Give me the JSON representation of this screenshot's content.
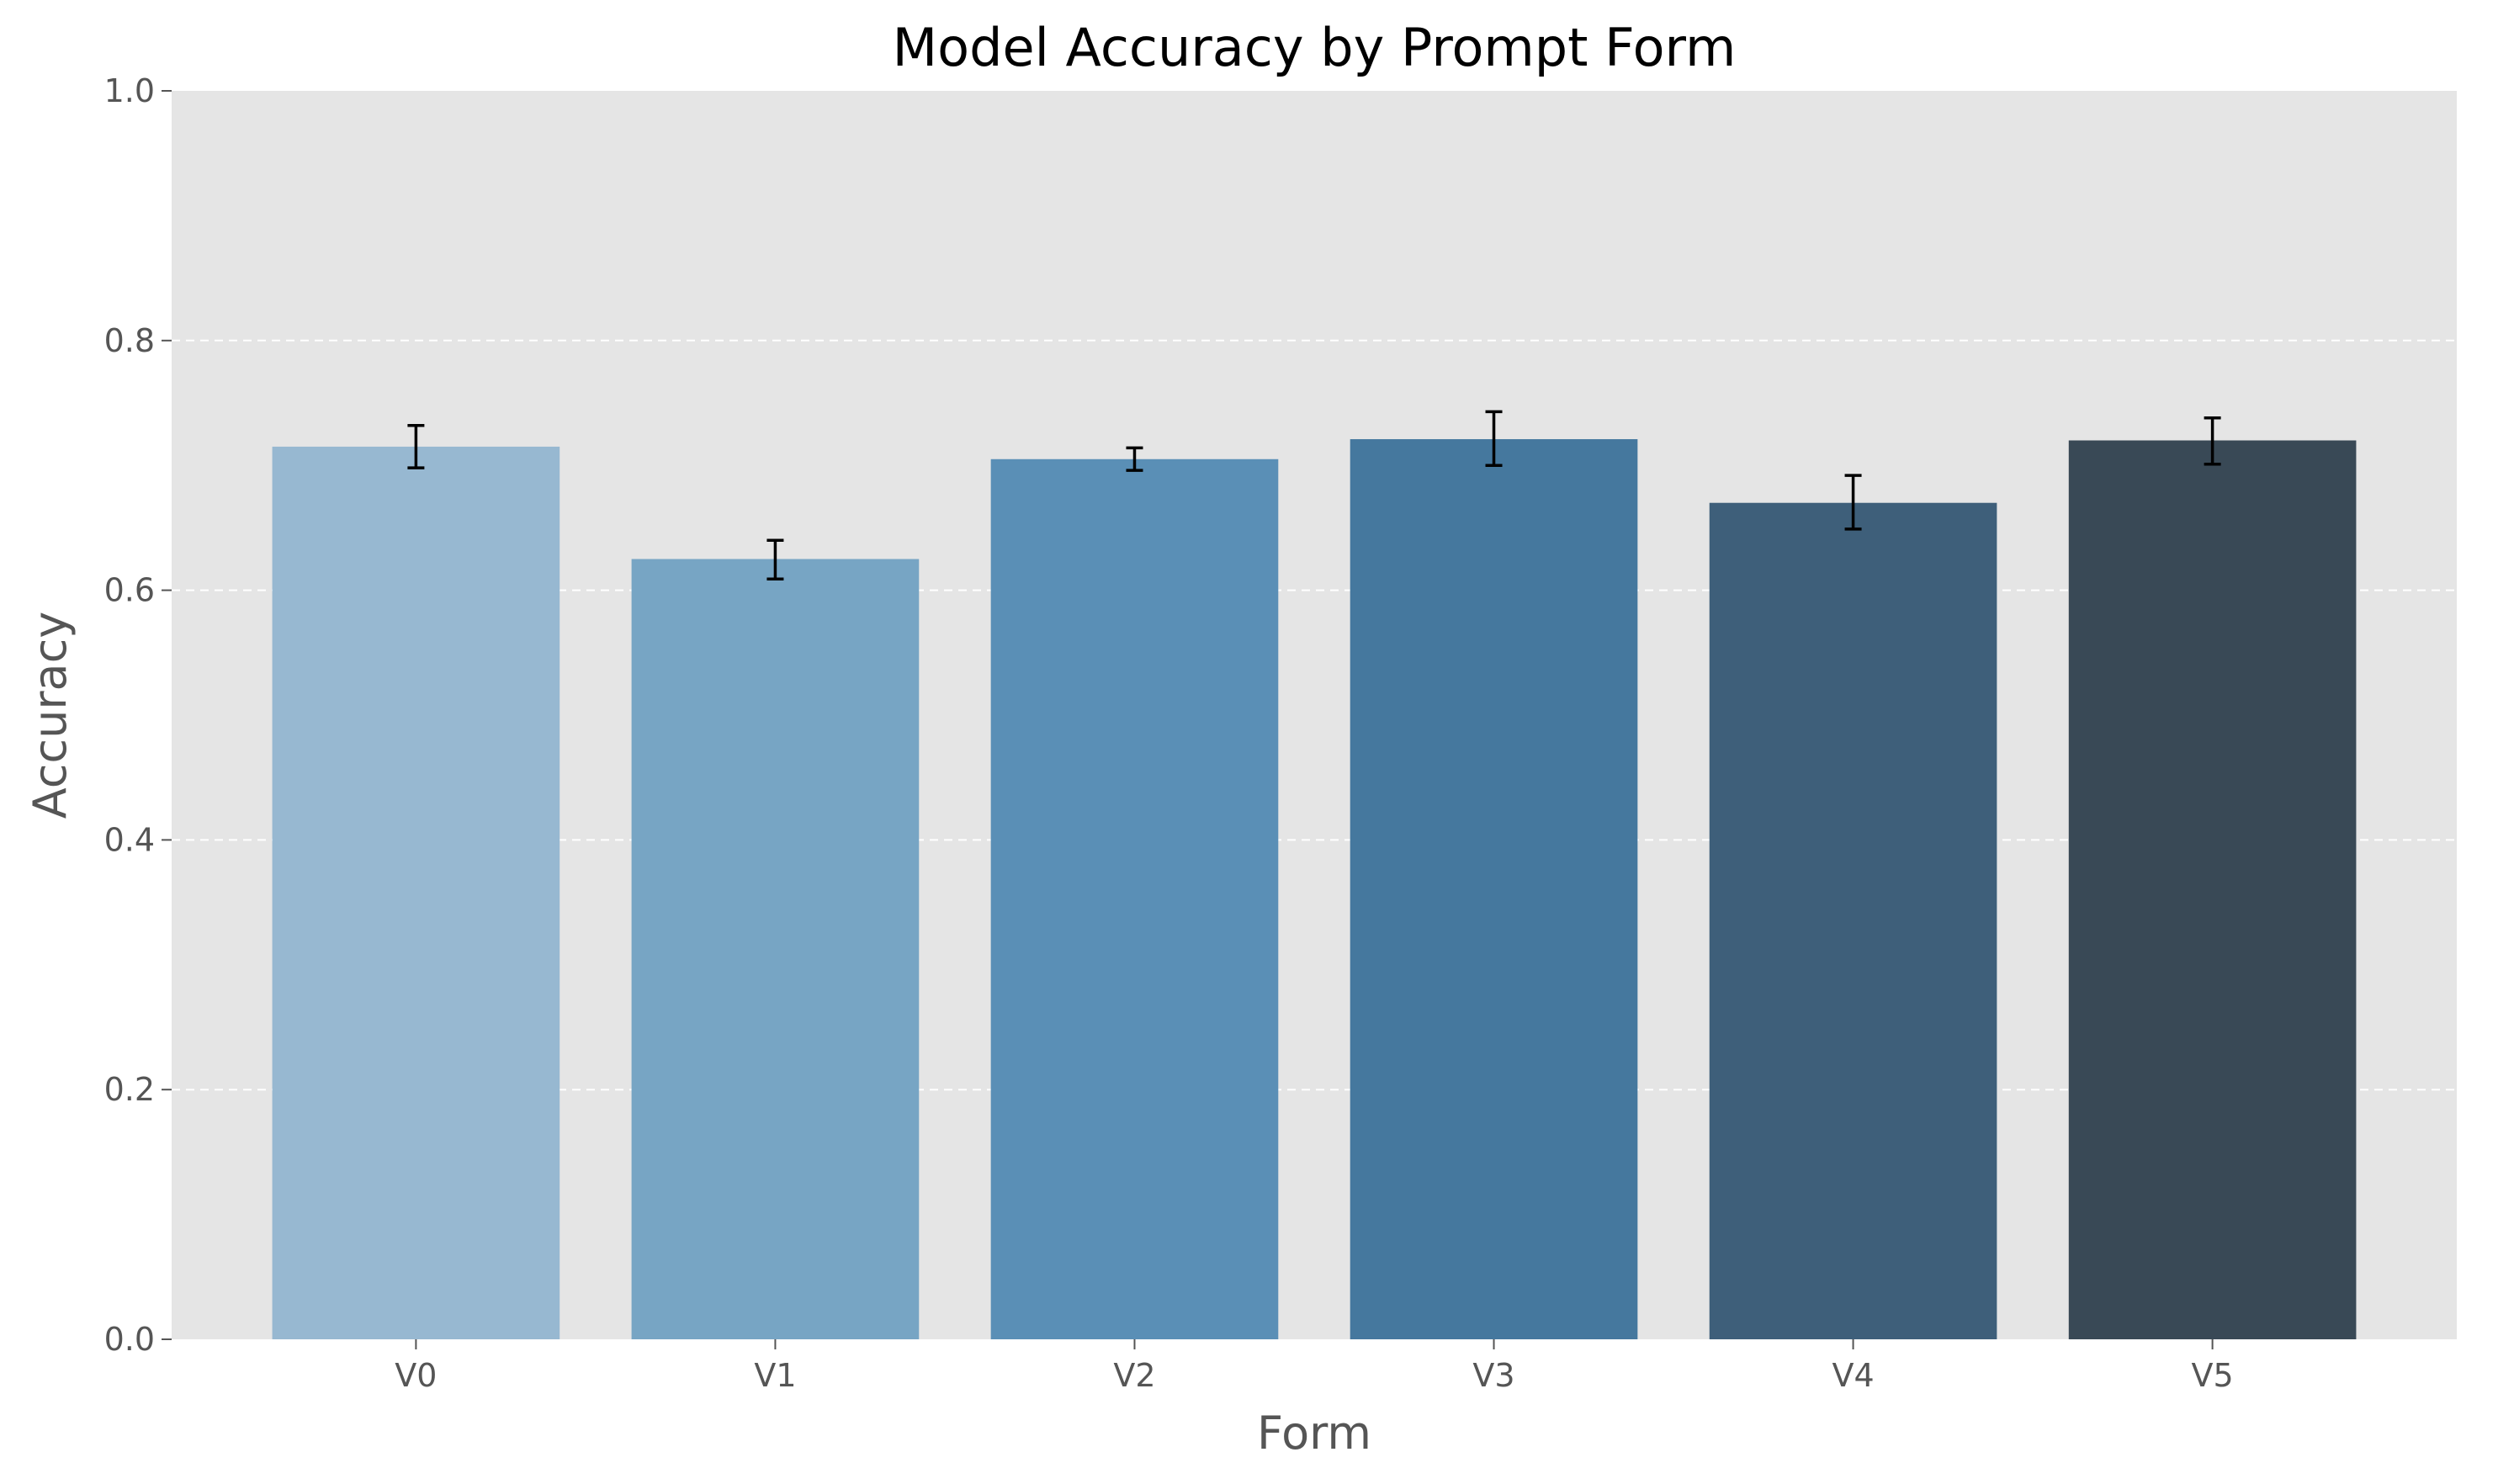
{
  "chart_data": {
    "type": "bar",
    "title": "Model Accuracy by Prompt Form",
    "xlabel": "Form",
    "ylabel": "Accuracy",
    "categories": [
      "V0",
      "V1",
      "V2",
      "V3",
      "V4",
      "V5"
    ],
    "values": [
      0.715,
      0.625,
      0.705,
      0.721,
      0.67,
      0.72
    ],
    "error_low": [
      0.698,
      0.609,
      0.696,
      0.7,
      0.649,
      0.701
    ],
    "error_high": [
      0.732,
      0.64,
      0.714,
      0.743,
      0.692,
      0.738
    ],
    "colors": [
      "#97b8d1",
      "#77a5c4",
      "#5a8fb6",
      "#45789e",
      "#3e5f7a",
      "#394956"
    ],
    "ylim": [
      0,
      1.0
    ],
    "yticks": [
      "0.0",
      "0.2",
      "0.4",
      "0.6",
      "0.8",
      "1.0"
    ],
    "grid": "y-dashed",
    "background": "#e5e5e5",
    "legend": "none"
  }
}
